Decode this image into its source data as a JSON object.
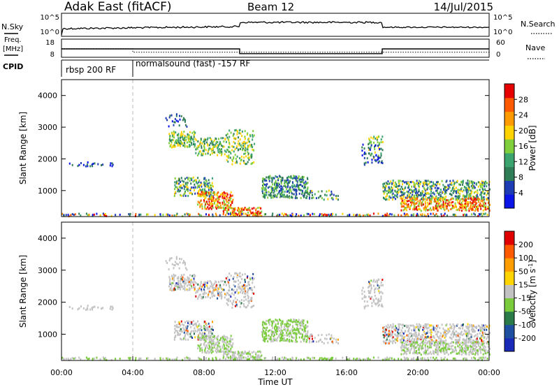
{
  "header": {
    "radar": "Adak East (fitACF)",
    "beam": "Beam 12",
    "date": "14/Jul/2015"
  },
  "panel_labels": {
    "nsky": "N.Sky",
    "nsky_ticks": [
      "10^5",
      "10^0"
    ],
    "nsearch": "N.Search",
    "nsearch_ticks": [
      "10^5",
      "10^0"
    ],
    "freq_line1": "Freq.",
    "freq_line2": "[MHz]",
    "freq_ticks": [
      "18",
      "8"
    ],
    "nave": "Nave",
    "nave_ticks": [
      "60",
      "0"
    ],
    "cpid": "CPID",
    "cpid_segments": [
      {
        "label": "rbsp 200 RF",
        "start_hour": 0,
        "end_hour": 4
      },
      {
        "label": "normalsound (fast) -157 RF",
        "start_hour": 4,
        "end_hour": 24
      }
    ]
  },
  "colors": {
    "power": [
      "#0a14e6",
      "#1e3cb4",
      "#2f7d57",
      "#3aa36e",
      "#7fcf3c",
      "#ffd200",
      "#ff9a00",
      "#ff5a00",
      "#e60000"
    ],
    "velocity": [
      "#1a2ab8",
      "#1e4fa0",
      "#2a7a4a",
      "#7acc3c",
      "#c2c2c2",
      "#ffd400",
      "#ff9c00",
      "#ff5a00",
      "#e10000"
    ]
  },
  "chart_data": [
    {
      "type": "heatmap",
      "name": "power",
      "ylabel": "Slant Range [km]",
      "yticks": [
        "1000",
        "2000",
        "3000",
        "4000"
      ],
      "ylim": [
        180,
        4500
      ],
      "xlim": [
        0,
        24
      ],
      "colorbar_label": "Power [dB]",
      "colorbar_ticks": [
        "4",
        "8",
        "12",
        "16",
        "20",
        "24",
        "28"
      ],
      "colorbar_range": [
        0,
        32
      ]
    },
    {
      "type": "heatmap",
      "name": "velocity",
      "ylabel": "Slant Range [km]",
      "yticks": [
        "1000",
        "2000",
        "3000",
        "4000"
      ],
      "ylim": [
        180,
        4500
      ],
      "xlim": [
        0,
        24
      ],
      "xlabel": "Time UT",
      "xticks": [
        "00:00",
        "04:00",
        "08:00",
        "12:00",
        "16:00",
        "20:00",
        "00:00"
      ],
      "colorbar_label_pre": "Velocity [m s",
      "colorbar_label_sup": "-1",
      "colorbar_label_post": "]",
      "colorbar_ticks": [
        "200",
        "100",
        "50",
        "15",
        "-15",
        "-50",
        "-100",
        "-200"
      ],
      "colorbar_range": [
        -250,
        250
      ]
    }
  ],
  "summary_data": {
    "freq_mhz": [
      {
        "start_hour": 0,
        "end_hour": 10,
        "value": 14.5
      },
      {
        "start_hour": 10,
        "end_hour": 18,
        "value": 10.5
      },
      {
        "start_hour": 18,
        "end_hour": 24,
        "value": 14.5
      }
    ],
    "nave": [
      {
        "start_hour": 0,
        "end_hour": 4,
        "value": 40
      },
      {
        "start_hour": 4,
        "end_hour": 24,
        "value": 22
      }
    ]
  }
}
